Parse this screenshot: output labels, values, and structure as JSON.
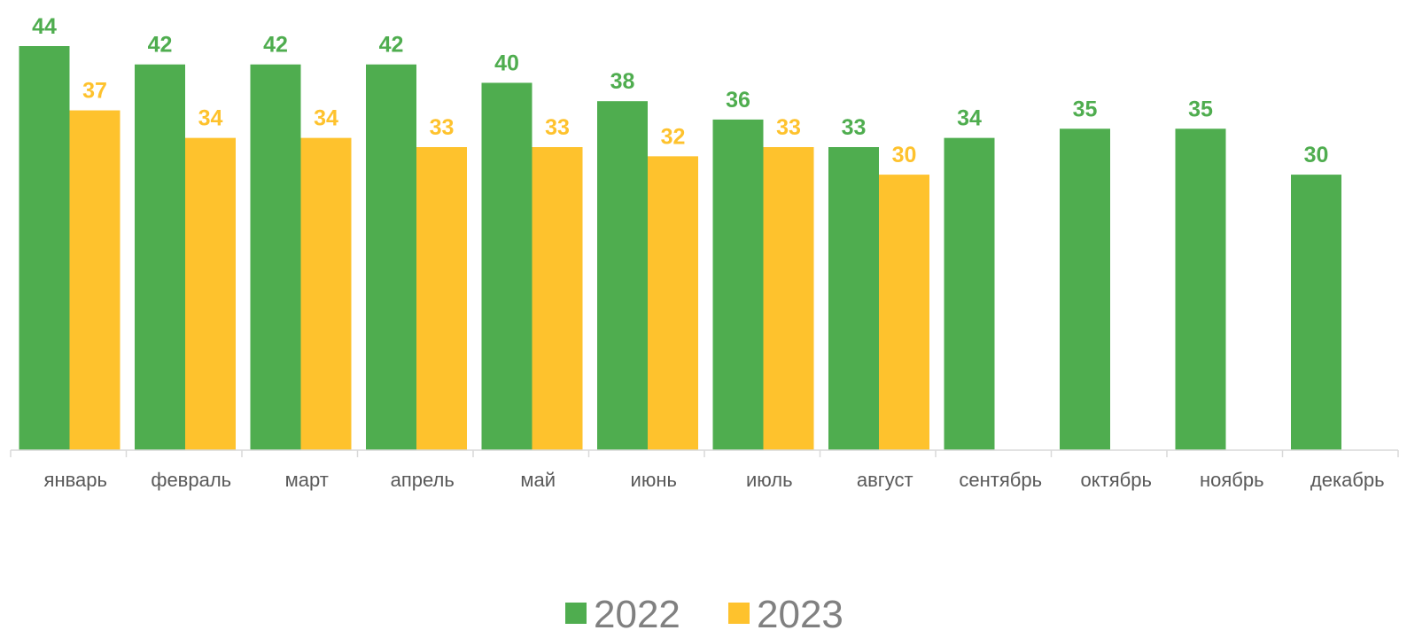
{
  "chart_data": {
    "type": "bar",
    "categories": [
      "январь",
      "февраль",
      "март",
      "апрель",
      "май",
      "июнь",
      "июль",
      "август",
      "сентябрь",
      "октябрь",
      "ноябрь",
      "декабрь"
    ],
    "series": [
      {
        "name": "2022",
        "color": "#4FAD4F",
        "values": [
          44,
          42,
          42,
          42,
          40,
          38,
          36,
          33,
          34,
          35,
          35,
          30
        ]
      },
      {
        "name": "2023",
        "color": "#FEC22D",
        "values": [
          37,
          34,
          34,
          33,
          33,
          32,
          33,
          30,
          null,
          null,
          null,
          null
        ]
      }
    ],
    "data_labels": true,
    "legend_position": "bottom",
    "grid": false,
    "ylim": [
      0,
      44
    ]
  }
}
